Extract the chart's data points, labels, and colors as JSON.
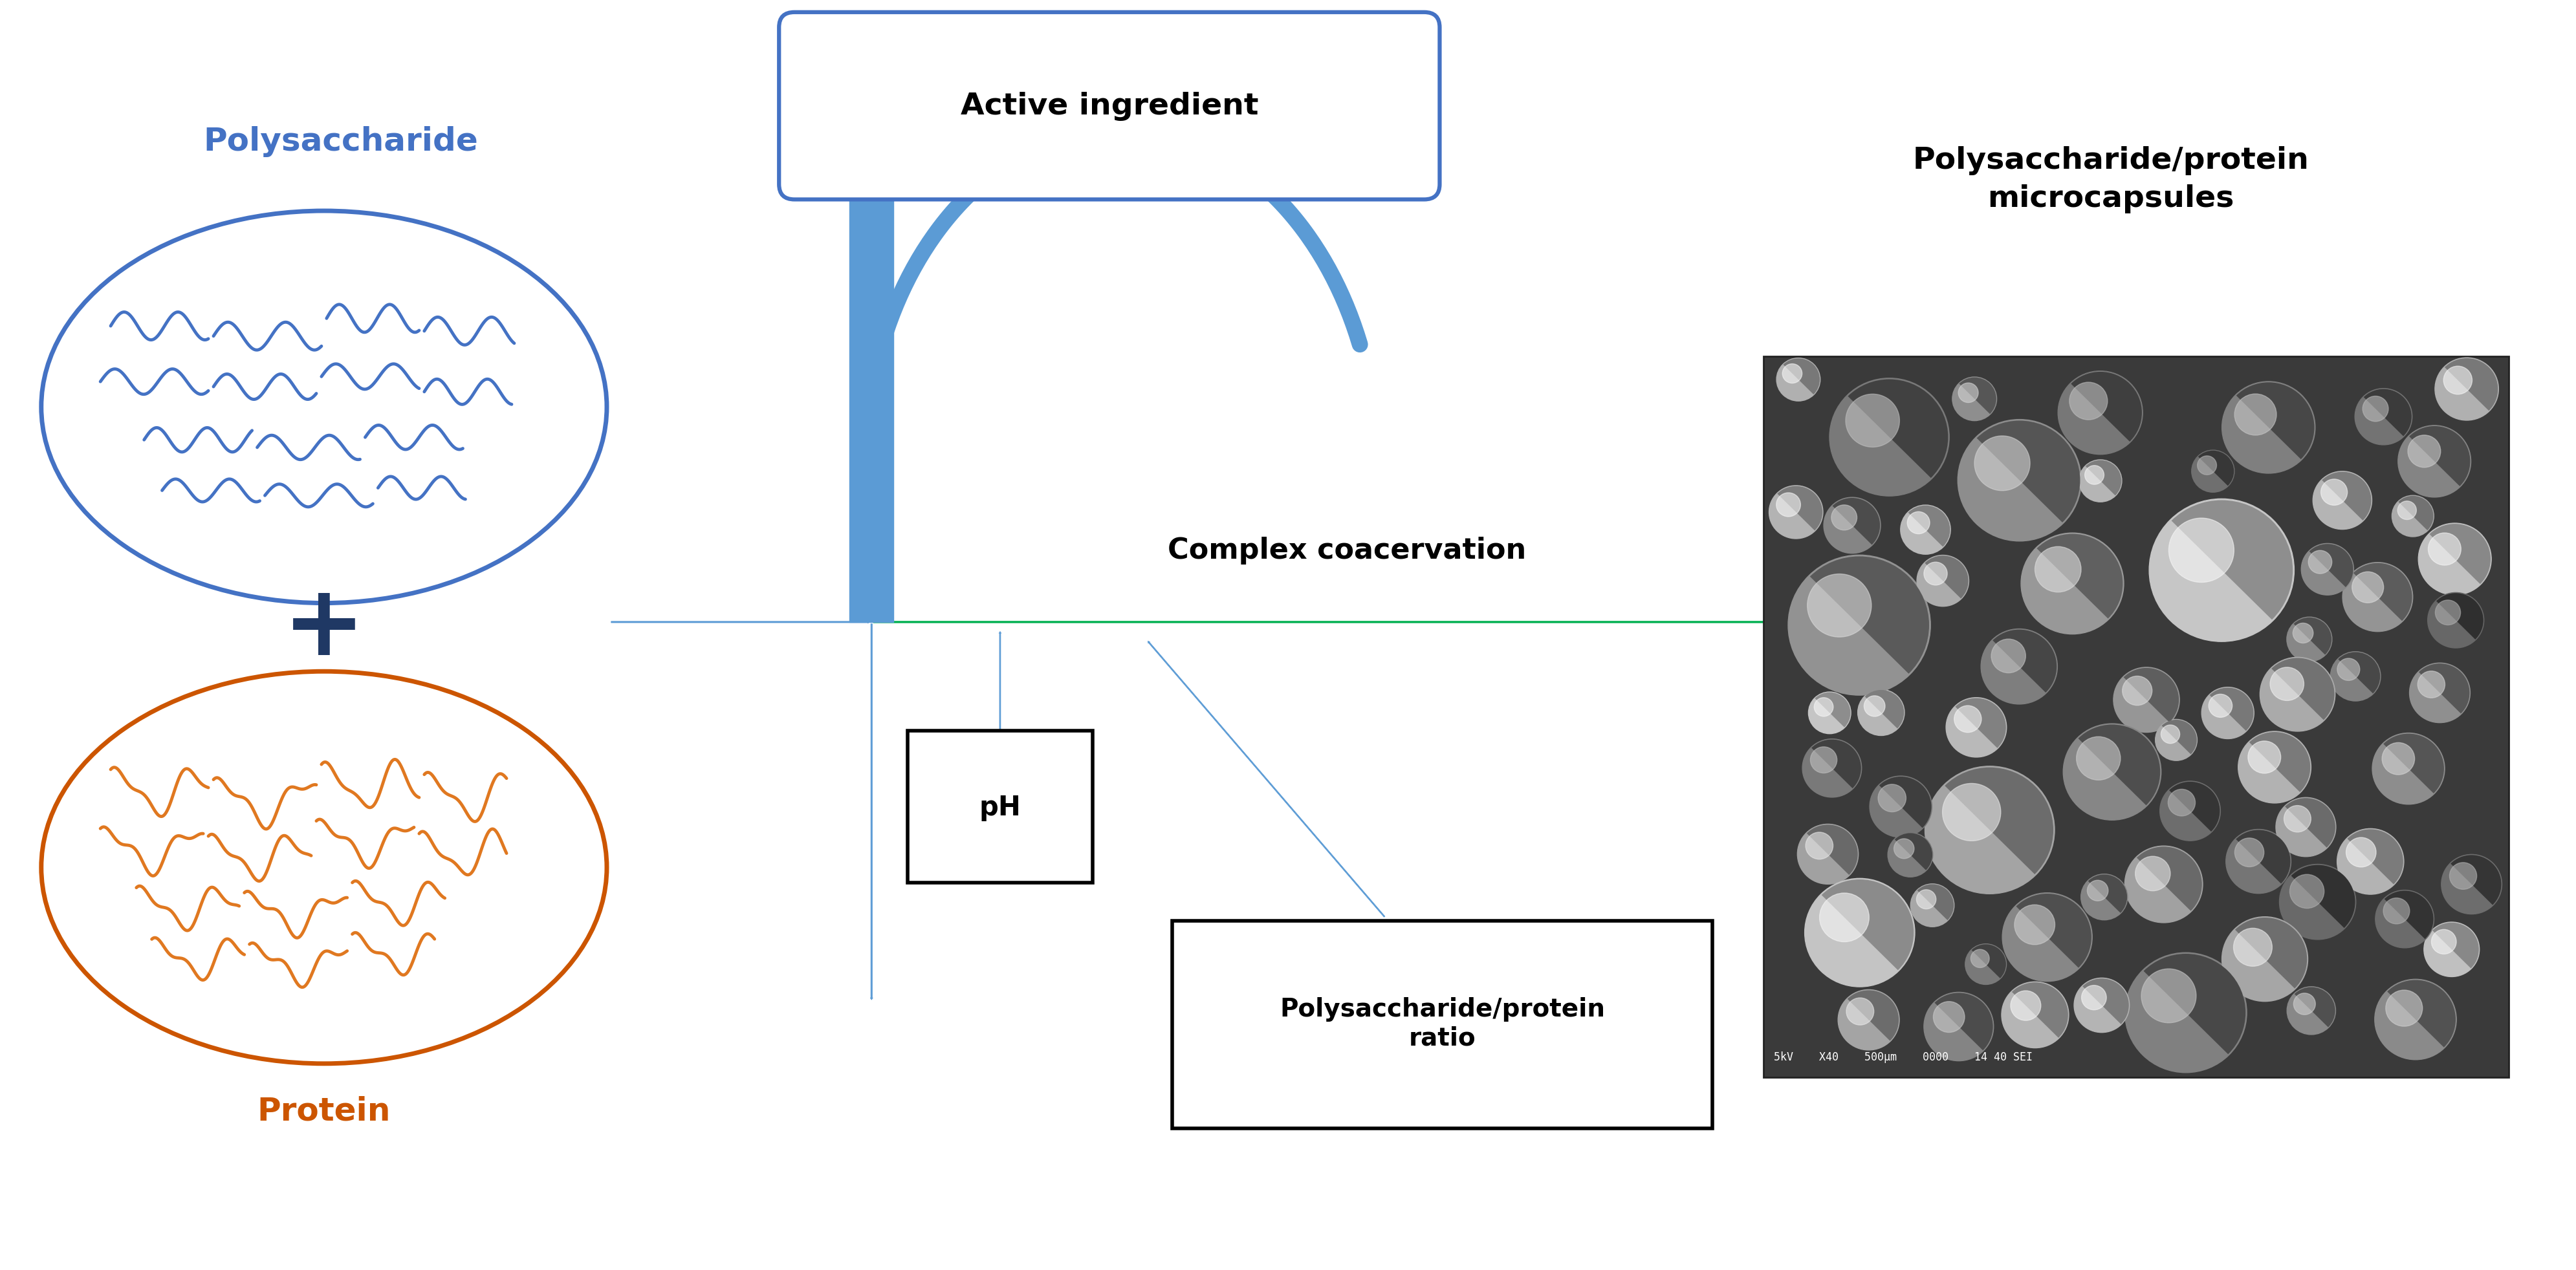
{
  "bg_color": "#ffffff",
  "polysaccharide_label": "Polysaccharide",
  "polysaccharide_color": "#4472c4",
  "polysaccharide_fill": "#ffffff",
  "protein_label": "Protein",
  "protein_color": "#cc5500",
  "protein_fill": "#ffffff",
  "protein_squiggle_color": "#e07820",
  "active_ingredient_label": "Active ingredient",
  "complex_coacervation_label": "Complex coacervation",
  "ph_label": "pH",
  "ratio_label": "Polysaccharide/protein\nratio",
  "microcapsules_label": "Polysaccharide/protein\nmicrocapsules",
  "arrow_color": "#5b9bd5",
  "green_arrow_color": "#00b050",
  "plus_color": "#1f3864",
  "xlim": [
    0,
    10
  ],
  "ylim": [
    0,
    5
  ]
}
